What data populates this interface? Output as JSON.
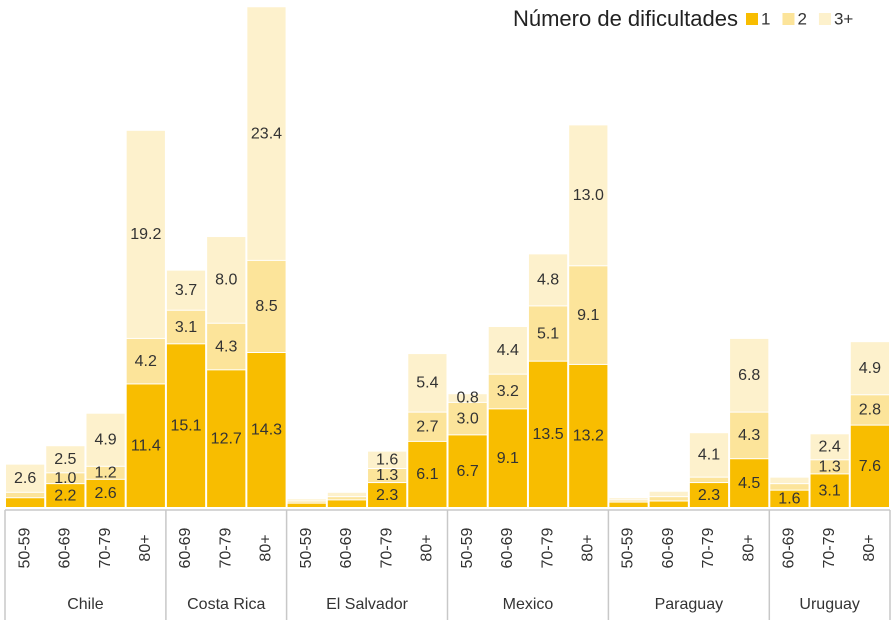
{
  "chart_data": {
    "type": "stacked-bar",
    "legend_title": "Número de dificultades",
    "legend_position": "top-right",
    "ylim": [
      0,
      46.5
    ],
    "groups": [
      {
        "name": "Chile",
        "categories": [
          "50-59",
          "60-69",
          "70-79",
          "80+"
        ]
      },
      {
        "name": "Costa Rica",
        "categories": [
          "60-69",
          "70-79",
          "80+"
        ]
      },
      {
        "name": "El Salvador",
        "categories": [
          "50-59",
          "60-69",
          "70-79",
          "80+"
        ]
      },
      {
        "name": "Mexico",
        "categories": [
          "50-59",
          "60-69",
          "70-79",
          "80+"
        ]
      },
      {
        "name": "Paraguay",
        "categories": [
          "50-59",
          "60-69",
          "70-79",
          "80+"
        ]
      },
      {
        "name": "Uruguay",
        "categories": [
          "60-69",
          "70-79",
          "80+"
        ]
      }
    ],
    "series": [
      {
        "name": "1",
        "color": "#f8bd00",
        "values": [
          0.9,
          2.2,
          2.6,
          11.4,
          15.1,
          12.7,
          14.3,
          0.4,
          0.7,
          2.3,
          6.1,
          6.7,
          9.1,
          13.5,
          13.2,
          0.5,
          0.6,
          2.3,
          4.5,
          1.6,
          3.1,
          7.6
        ],
        "value_labels": [
          null,
          "2.2",
          "2.6",
          "11.4",
          "15.1",
          "12.7",
          "14.3",
          null,
          null,
          "2.3",
          "6.1",
          "6.7",
          "9.1",
          "13.5",
          "13.2",
          null,
          null,
          "2.3",
          "4.5",
          "1.6",
          "3.1",
          "7.6"
        ]
      },
      {
        "name": "2",
        "color": "#fce49a",
        "values": [
          0.5,
          1.0,
          1.2,
          4.2,
          3.1,
          4.3,
          8.5,
          0.2,
          0.3,
          1.3,
          2.7,
          3.0,
          3.2,
          5.1,
          9.1,
          0.2,
          0.4,
          0.5,
          4.3,
          0.6,
          1.3,
          2.8
        ],
        "value_labels": [
          null,
          "1.0",
          "1.2",
          "4.2",
          "3.1",
          "4.3",
          "8.5",
          null,
          null,
          "1.3",
          "2.7",
          "3.0",
          "3.2",
          "5.1",
          "9.1",
          null,
          null,
          null,
          "4.3",
          null,
          "1.3",
          "2.8"
        ]
      },
      {
        "name": "3+",
        "color": "#fdf1cc",
        "values": [
          2.6,
          2.5,
          4.9,
          19.2,
          3.7,
          8.0,
          23.4,
          0.2,
          0.4,
          1.6,
          5.4,
          0.8,
          4.4,
          4.8,
          13.0,
          0.2,
          0.5,
          4.1,
          6.8,
          0.6,
          2.4,
          4.9
        ],
        "value_labels": [
          "2.6",
          "2.5",
          "4.9",
          "19.2",
          "3.7",
          "8.0",
          "23.4",
          null,
          null,
          "1.6",
          "5.4",
          "0.8",
          "4.4",
          "4.8",
          "13.0",
          null,
          null,
          "4.1",
          "6.8",
          null,
          "2.4",
          "4.9"
        ]
      }
    ]
  }
}
